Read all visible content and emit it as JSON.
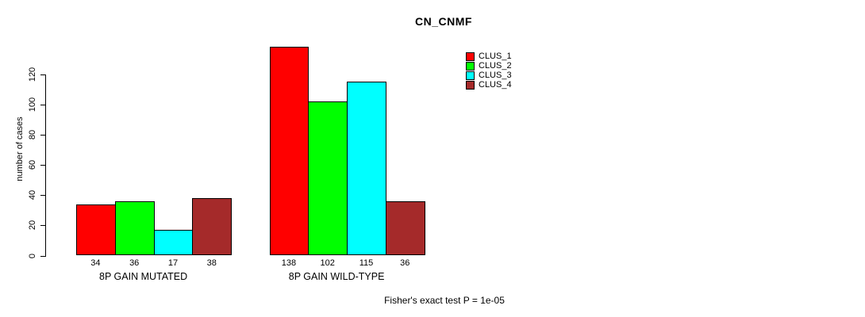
{
  "chart_data": {
    "type": "bar",
    "title": "CN_CNMF",
    "xlabel": "",
    "ylabel": "number of cases",
    "ylim": [
      0,
      138
    ],
    "yticks": [
      0,
      20,
      40,
      60,
      80,
      100,
      120
    ],
    "grid": false,
    "legend_position": "top-right",
    "categories": [
      "8P GAIN MUTATED",
      "8P GAIN WILD-TYPE"
    ],
    "series": [
      {
        "name": "CLUS_1",
        "color": "#FF0000",
        "values": [
          34,
          138
        ]
      },
      {
        "name": "CLUS_2",
        "color": "#00FF00",
        "values": [
          36,
          102
        ]
      },
      {
        "name": "CLUS_3",
        "color": "#00FFFF",
        "values": [
          17,
          115
        ]
      },
      {
        "name": "CLUS_4",
        "color": "#A52A2A",
        "values": [
          38,
          36
        ]
      }
    ],
    "bar_value_labels_visible": true,
    "footnote": "Fisher's exact test P = 1e-05"
  }
}
